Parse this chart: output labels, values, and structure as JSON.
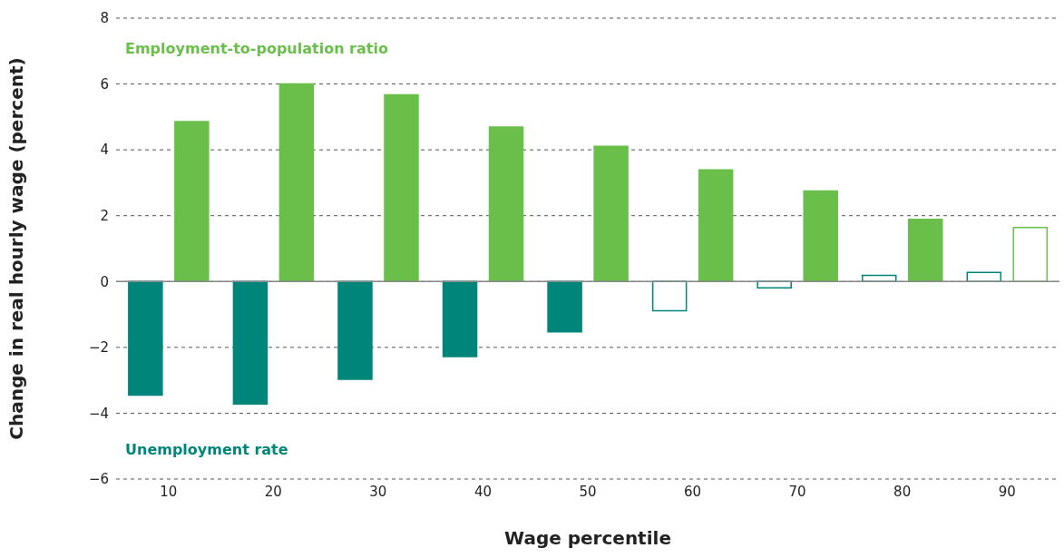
{
  "chart_data": {
    "type": "bar",
    "xlabel": "Wage percentile",
    "ylabel": "Change in real hourly wage (percent)",
    "categories": [
      "10",
      "20",
      "30",
      "40",
      "50",
      "60",
      "70",
      "80",
      "90"
    ],
    "series": [
      {
        "name": "Unemployment rate",
        "color": "#00857a",
        "colors": [
          "#00857a",
          "#00857a",
          "#00857a",
          "#00857a",
          "#00857a",
          "#ffffff",
          "#ffffff",
          "#ffffff",
          "#ffffff"
        ],
        "values": [
          -3.45,
          -3.72,
          -2.97,
          -2.28,
          -1.53,
          -0.89,
          -0.19,
          0.19,
          0.28
        ]
      },
      {
        "name": "Employment-to-population ratio",
        "color": "#6abf4b",
        "colors": [
          "#6abf4b",
          "#6abf4b",
          "#6abf4b",
          "#6abf4b",
          "#6abf4b",
          "#6abf4b",
          "#6abf4b",
          "#6abf4b",
          "#ffffff"
        ],
        "values": [
          4.86,
          6.0,
          5.67,
          4.69,
          4.11,
          3.39,
          2.75,
          1.89,
          1.64
        ]
      }
    ],
    "ylim": [
      -6,
      8
    ],
    "yticks": [
      {
        "value": -6,
        "label": "−6"
      },
      {
        "value": -4,
        "label": "−4"
      },
      {
        "value": -2,
        "label": "−2"
      },
      0,
      2,
      4,
      6,
      8
    ],
    "grid": "y",
    "legend": false
  }
}
